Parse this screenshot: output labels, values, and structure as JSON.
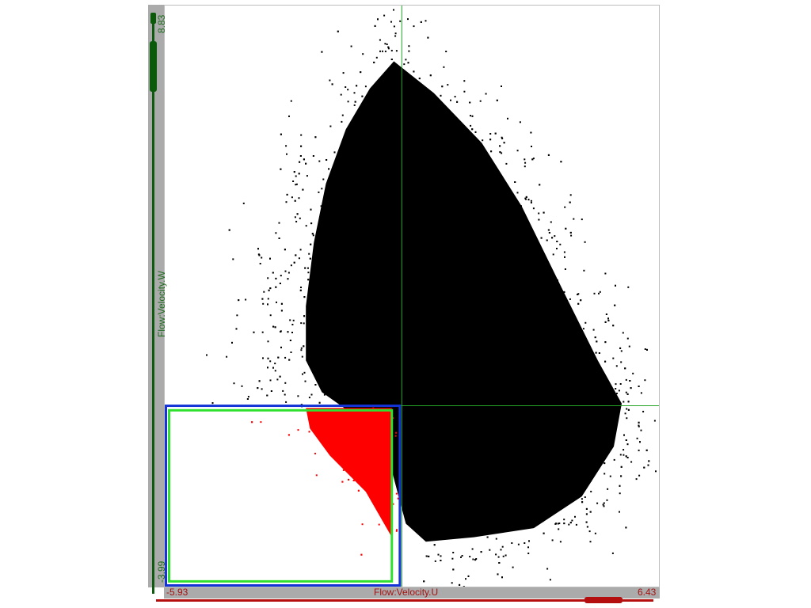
{
  "chart_data": {
    "type": "scatter",
    "xlabel": "Flow:Velocity.U",
    "ylabel": "Flow:Velocity.W",
    "x_min_label": "-5.93",
    "x_max_label": "6.43",
    "y_min_label": "-3.99",
    "y_max_label": "8.83",
    "xlim": [
      -5.93,
      6.43
    ],
    "ylim": [
      -3.99,
      8.83
    ],
    "crosshair": {
      "x": 0.0,
      "y": 0.0
    },
    "selection_outer": {
      "x": [
        -5.93,
        -0.05
      ],
      "y": [
        -3.99,
        0.0
      ]
    },
    "selection_inner": {
      "x": [
        -5.85,
        -0.25
      ],
      "y": [
        -3.9,
        -0.1
      ]
    },
    "series": [
      {
        "color": "#000000",
        "selected": false
      },
      {
        "color": "#ff0000",
        "selected": true
      }
    ],
    "grid": false,
    "legend": "none"
  },
  "colors": {
    "selection_outer": "#1433d6",
    "selection_inner": "#2fe02f",
    "crosshair": "#24a424",
    "x_axis_accent": "#b40e0e",
    "y_axis_accent": "#0e5a0e"
  }
}
